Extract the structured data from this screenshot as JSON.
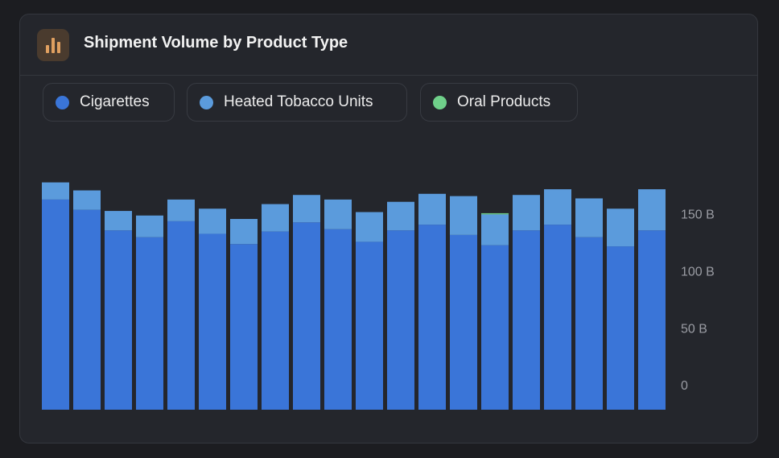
{
  "chart_data": {
    "type": "stacked-bar",
    "title": "Shipment Volume by Product Type",
    "categories": [
      null,
      null,
      null,
      null,
      null,
      null,
      null,
      null,
      null,
      null,
      null,
      null,
      null,
      null,
      null,
      null,
      null,
      null,
      null,
      null
    ],
    "series": [
      {
        "name": "Cigarettes",
        "color": "#3a75d8",
        "values": [
          184,
          175,
          157,
          151,
          165,
          154,
          145,
          156,
          164,
          158,
          147,
          157,
          162,
          153,
          144,
          157,
          162,
          151,
          143,
          157
        ]
      },
      {
        "name": "Heated Tobacco Units",
        "color": "#5b9bdc",
        "values": [
          15,
          17,
          17,
          19,
          19,
          22,
          22,
          24,
          24,
          26,
          26,
          25,
          27,
          34,
          27,
          31,
          31,
          34,
          33,
          36
        ]
      },
      {
        "name": "Oral Products",
        "color": "#6fd08a",
        "values": [
          0,
          0,
          0,
          0,
          0,
          0,
          0,
          0,
          0,
          0,
          0,
          0,
          0,
          0,
          1,
          0,
          0,
          0,
          0,
          0
        ]
      }
    ],
    "ylim": [
      0,
      210
    ],
    "yticks": [
      0,
      {
        "value": 50,
        "label": "50 B"
      },
      {
        "value": 100,
        "label": "100 B"
      },
      {
        "value": 150,
        "label": "150 B"
      }
    ],
    "grid": false
  }
}
